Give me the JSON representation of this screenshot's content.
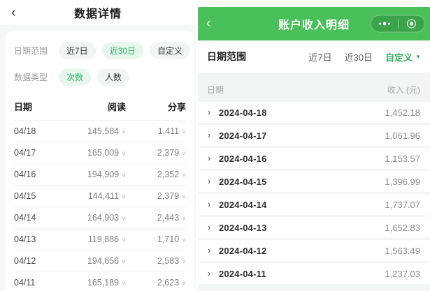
{
  "colors": {
    "header_green": "#4ac05a",
    "green_text": "#2fad5f",
    "green_pill_bg": "#e8f7ee",
    "gray_pill_bg": "#f3f4f6",
    "page_bg": "#f6f7f8",
    "band_bg": "#f3f5f4"
  },
  "icons": {
    "back": "‹",
    "chevron_down": "∨",
    "caret_down": "▼",
    "row_chevron": "›"
  },
  "left_panel": {
    "header": {
      "title": "数据详情"
    },
    "filters": {
      "date_range_label": "日期范围",
      "date_range_options": [
        {
          "label": "近7日",
          "selected": false
        },
        {
          "label": "近30日",
          "selected": true
        },
        {
          "label": "自定义",
          "selected": false
        }
      ],
      "data_type_label": "数据类型",
      "data_type_options": [
        {
          "label": "次数",
          "selected": true
        },
        {
          "label": "人数",
          "selected": false
        }
      ]
    },
    "table": {
      "col_date": "日期",
      "col_reads": "阅读",
      "col_shares": "分享",
      "rows": [
        {
          "date": "04/18",
          "reads": "145,584",
          "shares": "1,411"
        },
        {
          "date": "04/17",
          "reads": "165,009",
          "shares": "2,379"
        },
        {
          "date": "04/16",
          "reads": "194,909",
          "shares": "2,352"
        },
        {
          "date": "04/15",
          "reads": "144,411",
          "shares": "2,379"
        },
        {
          "date": "04/14",
          "reads": "164,903",
          "shares": "2,443"
        },
        {
          "date": "04/13",
          "reads": "119,886",
          "shares": "1,710"
        },
        {
          "date": "04/12",
          "reads": "194,656",
          "shares": "2,583"
        },
        {
          "date": "04/11",
          "reads": "165,189",
          "shares": "2,623"
        }
      ]
    }
  },
  "right_panel": {
    "header": {
      "title": "账户收入明细"
    },
    "filter": {
      "label": "日期范围",
      "options": [
        {
          "label": "近7日",
          "selected": false,
          "has_caret": false
        },
        {
          "label": "近30日",
          "selected": false,
          "has_caret": false
        },
        {
          "label": "自定义",
          "selected": true,
          "has_caret": true
        }
      ]
    },
    "table": {
      "col_date": "日期",
      "col_income": "收入 (元)",
      "rows": [
        {
          "date": "2024-04-18",
          "income": "1,452.18"
        },
        {
          "date": "2024-04-17",
          "income": "1,061.96"
        },
        {
          "date": "2024-04-16",
          "income": "1,153.57"
        },
        {
          "date": "2024-04-15",
          "income": "1,396.99"
        },
        {
          "date": "2024-04-14",
          "income": "1,737.07"
        },
        {
          "date": "2024-04-13",
          "income": "1,652.83"
        },
        {
          "date": "2024-04-12",
          "income": "1,563.49"
        },
        {
          "date": "2024-04-11",
          "income": "1,237.03"
        }
      ]
    }
  }
}
